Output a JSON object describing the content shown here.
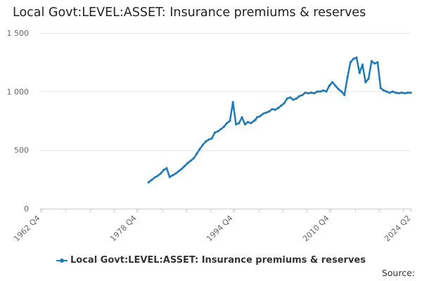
{
  "title": "Local Govt:LEVEL:ASSET: Insurance premiums & reserves",
  "source_label": "Source:",
  "colors": {
    "series": "#1f7ab5",
    "grid": "#e6e6e6",
    "axis": "#cccccc",
    "text": "#666666"
  },
  "chart_data": {
    "type": "line",
    "title": "Local Govt:LEVEL:ASSET: Insurance premiums & reserves",
    "xlabel": "",
    "ylabel": "",
    "x_unit": "quarter",
    "x_start": "1962 Q4",
    "x_end": "2024 Q2",
    "x_tick_labels": [
      "1962 Q4",
      "1978 Q4",
      "1994 Q4",
      "2010 Q4",
      "2024 Q2"
    ],
    "ylim": [
      0,
      1500
    ],
    "y_tick_values": [
      0,
      500,
      1000,
      1500
    ],
    "y_tick_labels": [
      "0",
      "500",
      "1 000",
      "1 500"
    ],
    "grid": "horizontal",
    "legend_position": "bottom",
    "series": [
      {
        "name": "Local Govt:LEVEL:ASSET: Insurance premiums & reserves",
        "x": [
          "1980 Q4",
          "1981 Q2",
          "1981 Q4",
          "1982 Q2",
          "1982 Q4",
          "1983 Q2",
          "1983 Q4",
          "1984 Q2",
          "1984 Q4",
          "1985 Q2",
          "1985 Q4",
          "1986 Q2",
          "1986 Q4",
          "1987 Q2",
          "1987 Q4",
          "1988 Q2",
          "1988 Q4",
          "1989 Q2",
          "1989 Q4",
          "1990 Q2",
          "1990 Q4",
          "1991 Q2",
          "1991 Q4",
          "1992 Q2",
          "1992 Q4",
          "1993 Q2",
          "1993 Q4",
          "1994 Q2",
          "1994 Q4",
          "1995 Q2",
          "1995 Q4",
          "1996 Q2",
          "1996 Q4",
          "1997 Q2",
          "1997 Q4",
          "1998 Q2",
          "1998 Q3",
          "1998 Q4",
          "1999 Q2",
          "1999 Q4",
          "2000 Q2",
          "2000 Q4",
          "2001 Q2",
          "2001 Q4",
          "2002 Q2",
          "2002 Q4",
          "2003 Q2",
          "2003 Q4",
          "2004 Q2",
          "2004 Q4",
          "2005 Q2",
          "2005 Q4",
          "2006 Q2",
          "2006 Q4",
          "2007 Q2",
          "2007 Q4",
          "2008 Q2",
          "2008 Q4",
          "2009 Q2",
          "2009 Q4",
          "2010 Q2",
          "2010 Q4",
          "2011 Q2",
          "2011 Q4",
          "2012 Q2",
          "2012 Q4",
          "2013 Q2",
          "2013 Q4",
          "2014 Q2",
          "2014 Q4",
          "2015 Q2",
          "2015 Q4",
          "2016 Q2",
          "2016 Q4",
          "2017 Q2",
          "2017 Q4",
          "2018 Q2",
          "2018 Q4",
          "2019 Q2",
          "2019 Q4",
          "2020 Q2",
          "2020 Q4",
          "2021 Q2",
          "2021 Q4",
          "2022 Q2",
          "2022 Q4",
          "2023 Q2",
          "2023 Q4",
          "2024 Q2"
        ],
        "y": [
          225,
          245,
          265,
          280,
          300,
          330,
          345,
          270,
          285,
          300,
          320,
          340,
          365,
          390,
          410,
          430,
          470,
          510,
          545,
          575,
          590,
          600,
          650,
          660,
          680,
          700,
          730,
          750,
          910,
          720,
          730,
          780,
          720,
          740,
          730,
          750,
          760,
          780,
          790,
          810,
          820,
          830,
          850,
          845,
          860,
          880,
          900,
          940,
          950,
          930,
          940,
          960,
          970,
          990,
          985,
          990,
          985,
          1000,
          1000,
          1010,
          1000,
          1050,
          1080,
          1050,
          1020,
          1000,
          970,
          1120,
          1250,
          1280,
          1290,
          1160,
          1230,
          1080,
          1110,
          1260,
          1240,
          1250,
          1030,
          1010,
          1000,
          990,
          1000,
          990,
          985,
          990,
          985,
          990,
          990
        ]
      }
    ]
  }
}
